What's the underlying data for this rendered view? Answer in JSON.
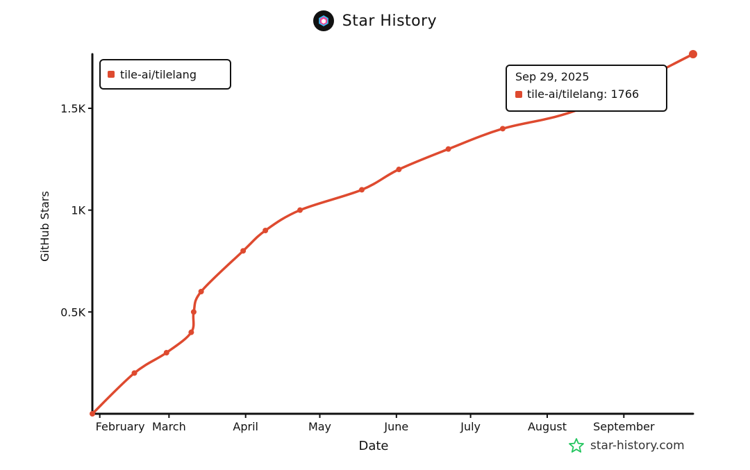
{
  "header": {
    "title": "Star History",
    "logo_icon": "star-history-logo-icon"
  },
  "watermark": {
    "text": "star-history.com",
    "icon": "star-outline-icon",
    "color": "#22c55e"
  },
  "tooltip": {
    "date": "Sep 29, 2025",
    "label": "tile-ai/tilelang: 1766"
  },
  "colors": {
    "series": "#de4a2f",
    "axis": "#111111"
  },
  "chart_data": {
    "type": "line",
    "title": "Star History",
    "xlabel": "Date",
    "ylabel": "GitHub Stars",
    "legend_position": "top-left",
    "grid": false,
    "x_ticks": [
      "February",
      "March",
      "April",
      "May",
      "June",
      "July",
      "August",
      "September"
    ],
    "y_ticks": [
      "0.5K",
      "1K",
      "1.5K"
    ],
    "ylim": [
      0,
      1766
    ],
    "series": [
      {
        "name": "tile-ai/tilelang",
        "color": "#de4a2f",
        "points": [
          {
            "x": "2025-01-29",
            "y": 0
          },
          {
            "x": "2025-02-15",
            "y": 200
          },
          {
            "x": "2025-02-28",
            "y": 300
          },
          {
            "x": "2025-03-10",
            "y": 400
          },
          {
            "x": "2025-03-11",
            "y": 500
          },
          {
            "x": "2025-03-14",
            "y": 600
          },
          {
            "x": "2025-03-31",
            "y": 800
          },
          {
            "x": "2025-04-09",
            "y": 900
          },
          {
            "x": "2025-04-23",
            "y": 1000
          },
          {
            "x": "2025-05-18",
            "y": 1100
          },
          {
            "x": "2025-06-02",
            "y": 1200
          },
          {
            "x": "2025-06-22",
            "y": 1300
          },
          {
            "x": "2025-07-14",
            "y": 1400
          },
          {
            "x": "2025-08-15",
            "y": 1500
          },
          {
            "x": "2025-09-29",
            "y": 1766
          }
        ]
      }
    ]
  }
}
